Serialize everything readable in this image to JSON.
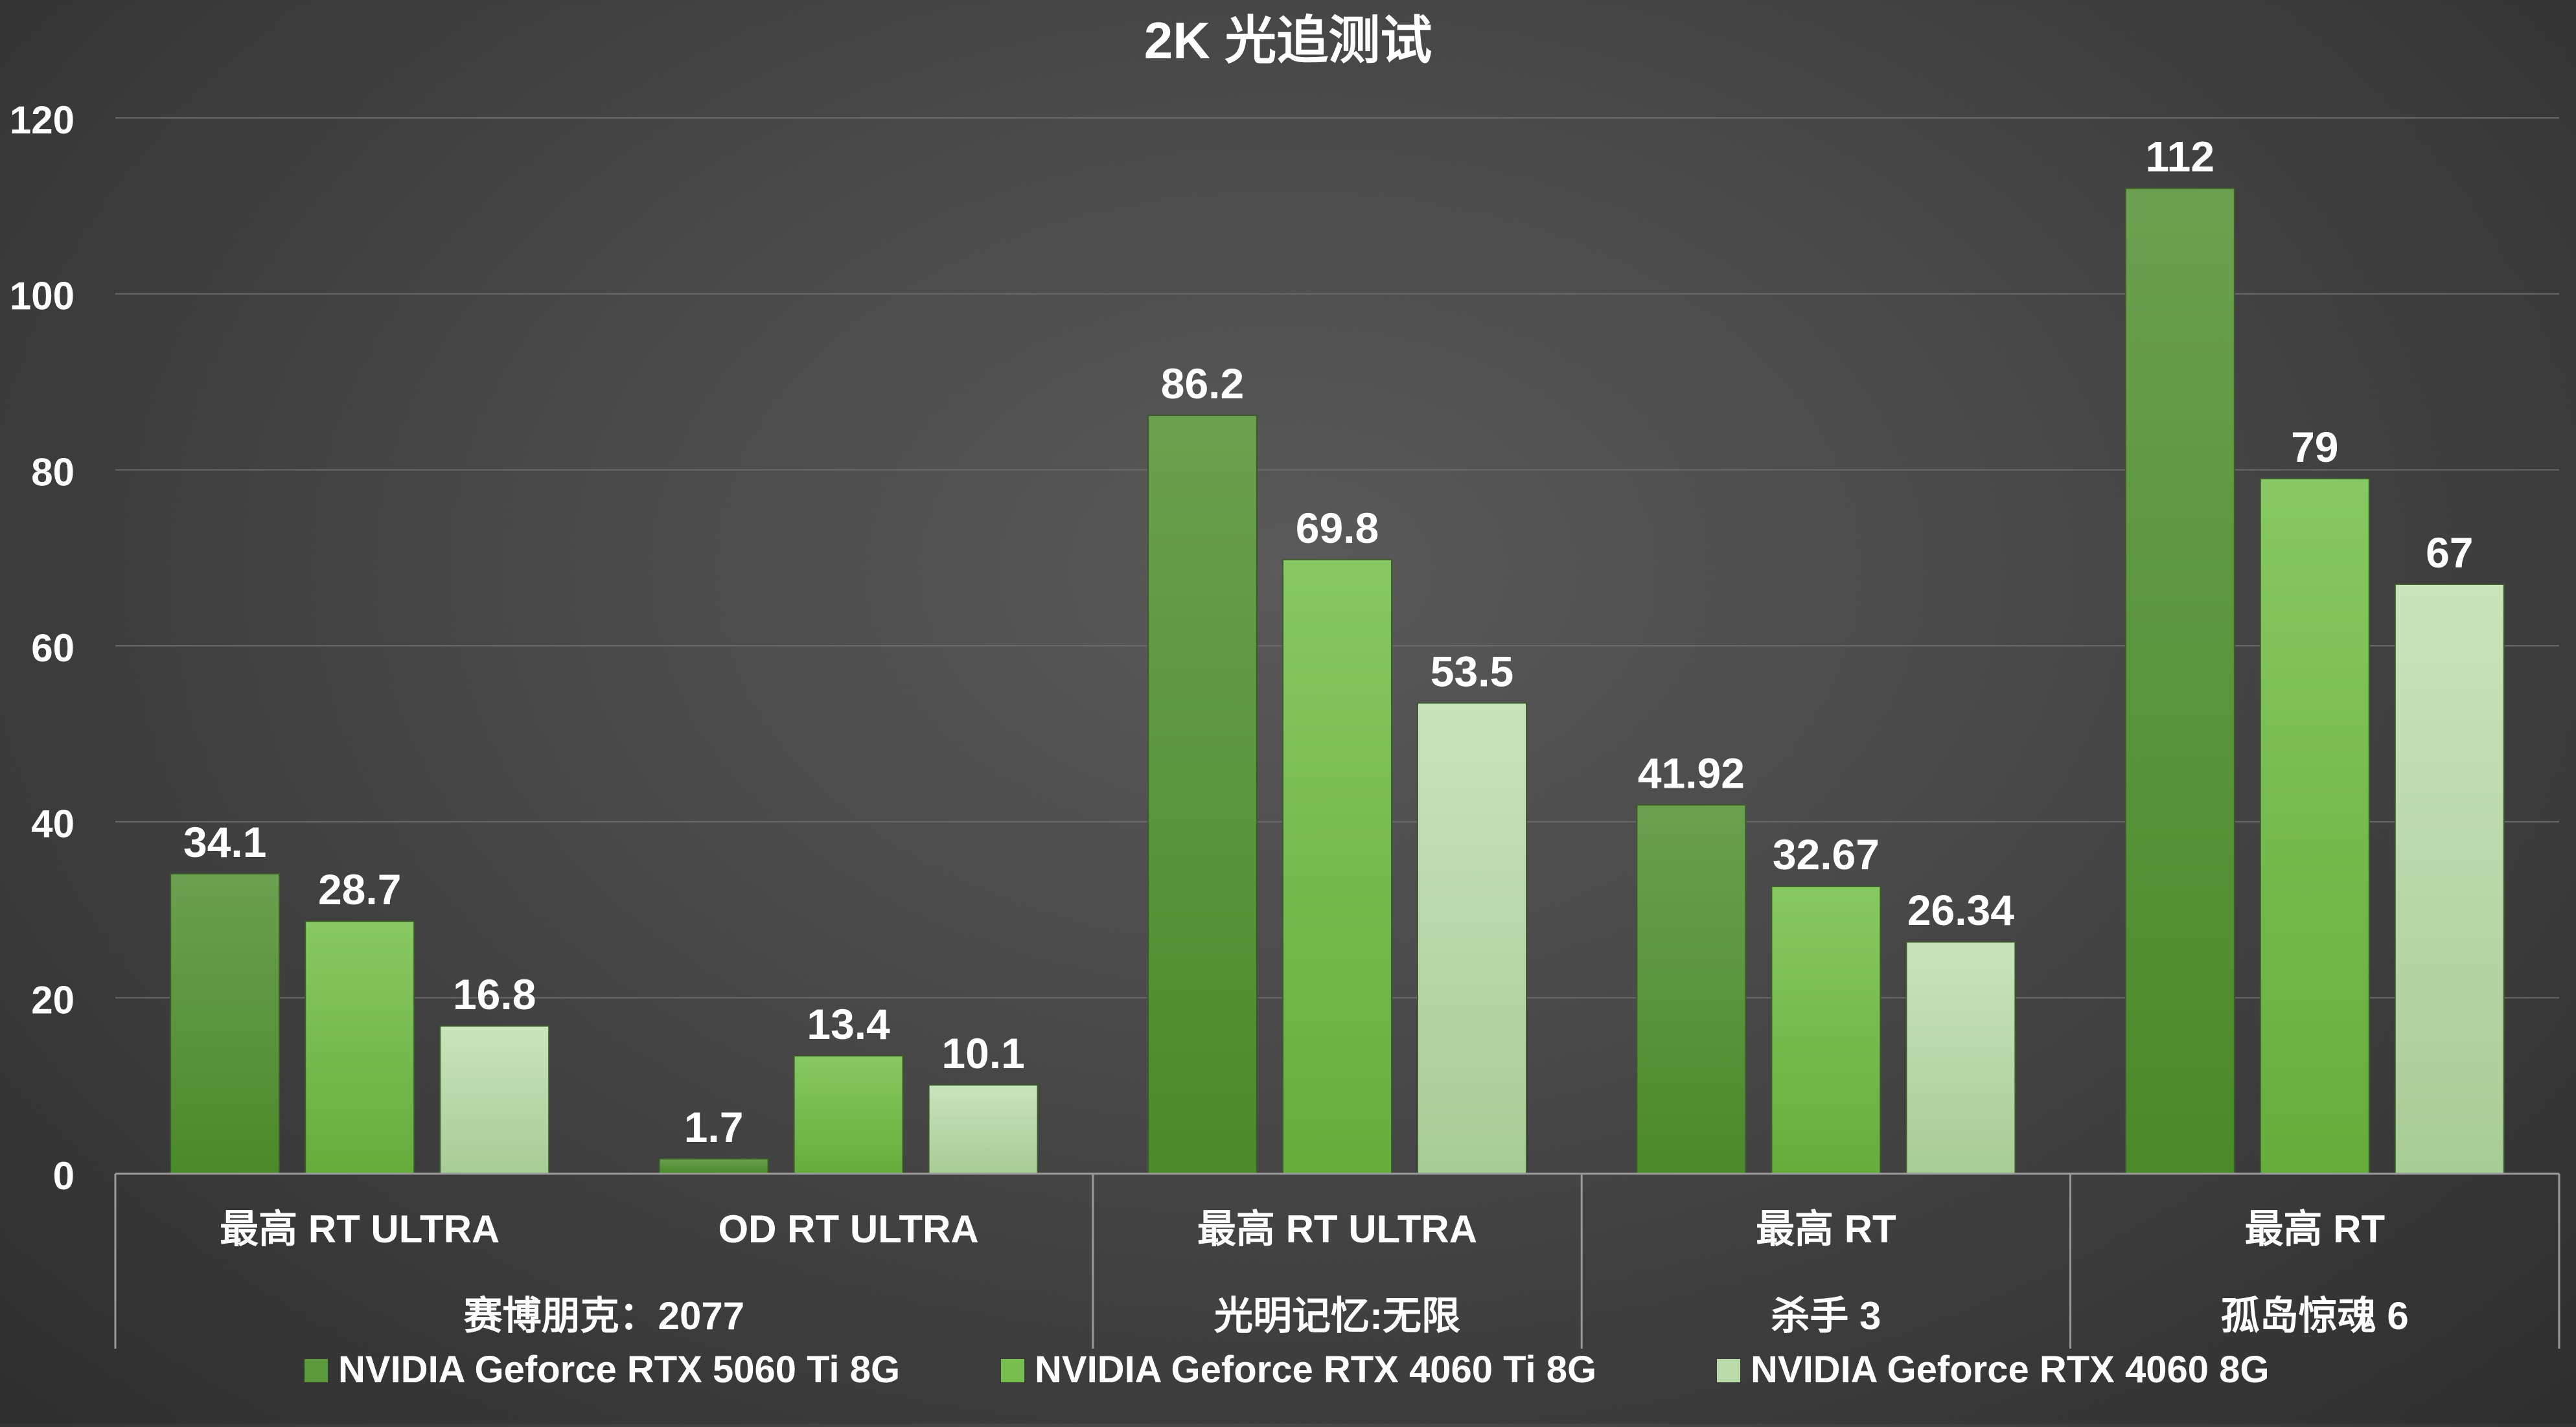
{
  "chart_data": {
    "type": "bar",
    "title": "2K 光追测试",
    "ylim": [
      0,
      120
    ],
    "yticks": [
      0,
      20,
      40,
      60,
      80,
      100,
      120
    ],
    "grid": true,
    "legend_position": "bottom",
    "groups": [
      {
        "name": "赛博朋克：2077",
        "subcategories": [
          "最高 RT ULTRA",
          "OD RT ULTRA"
        ]
      },
      {
        "name": "光明记忆:无限",
        "subcategories": [
          "最高 RT ULTRA"
        ]
      },
      {
        "name": "杀手 3",
        "subcategories": [
          "最高 RT"
        ]
      },
      {
        "name": "孤岛惊魂 6",
        "subcategories": [
          "最高 RT"
        ]
      }
    ],
    "categories": [
      "最高 RT ULTRA",
      "OD RT ULTRA",
      "最高 RT ULTRA",
      "最高 RT",
      "最高 RT"
    ],
    "series": [
      {
        "name": "NVIDIA Geforce RTX 5060 Ti 8G",
        "color": "#5a9a3c",
        "values": [
          34.1,
          1.7,
          86.2,
          41.92,
          112
        ],
        "labels": [
          "34.1",
          "1.7",
          "86.2",
          "41.92",
          "112"
        ]
      },
      {
        "name": "NVIDIA Geforce RTX 4060 Ti 8G",
        "color": "#77be4e",
        "values": [
          28.7,
          13.4,
          69.8,
          32.67,
          79
        ],
        "labels": [
          "28.7",
          "13.4",
          "69.8",
          "32.67",
          "79"
        ]
      },
      {
        "name": "NVIDIA Geforce RTX 4060 8G",
        "color": "#b9d9a8",
        "values": [
          16.8,
          10.1,
          53.5,
          26.34,
          67
        ],
        "labels": [
          "16.8",
          "10.1",
          "53.5",
          "26.34",
          "67"
        ]
      }
    ]
  }
}
